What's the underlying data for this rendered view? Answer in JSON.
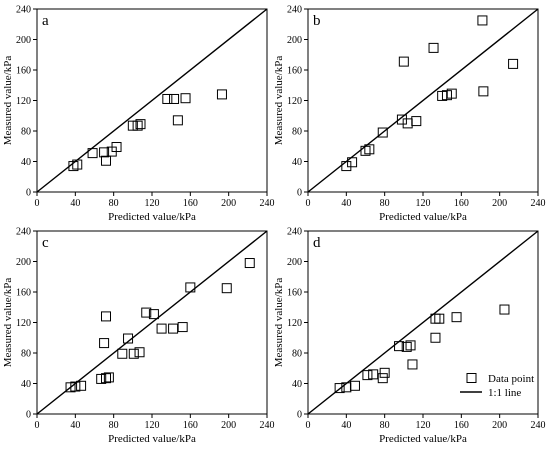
{
  "colors": {
    "background": "#ffffff",
    "axis": "#000000",
    "marker_stroke": "#000000",
    "marker_fill": "none",
    "identity_line": "#000000"
  },
  "chart_data": [
    {
      "type": "scatter",
      "panel_label": "a",
      "xlabel": "Predicted value/kPa",
      "ylabel": "Measured value/kPa",
      "xlim": [
        0,
        240
      ],
      "ylim": [
        0,
        240
      ],
      "xticks": [
        "0",
        "40",
        "80",
        "120",
        "160",
        "200",
        "240"
      ],
      "yticks": [
        "0",
        "40",
        "80",
        "120",
        "160",
        "200",
        "240"
      ],
      "grid": false,
      "marker": "open-square",
      "reference_line": "1:1",
      "legend": null,
      "points": [
        {
          "x": 38,
          "y": 34
        },
        {
          "x": 42,
          "y": 36
        },
        {
          "x": 58,
          "y": 51
        },
        {
          "x": 70,
          "y": 52
        },
        {
          "x": 72,
          "y": 41
        },
        {
          "x": 78,
          "y": 53
        },
        {
          "x": 83,
          "y": 59
        },
        {
          "x": 100,
          "y": 87
        },
        {
          "x": 105,
          "y": 87
        },
        {
          "x": 108,
          "y": 89
        },
        {
          "x": 136,
          "y": 122
        },
        {
          "x": 143,
          "y": 122
        },
        {
          "x": 147,
          "y": 94
        },
        {
          "x": 155,
          "y": 123
        },
        {
          "x": 193,
          "y": 128
        }
      ]
    },
    {
      "type": "scatter",
      "panel_label": "b",
      "xlabel": "Predicted value/kPa",
      "ylabel": "Measured value/kPa",
      "xlim": [
        0,
        240
      ],
      "ylim": [
        0,
        240
      ],
      "xticks": [
        "0",
        "40",
        "80",
        "120",
        "160",
        "200",
        "240"
      ],
      "yticks": [
        "0",
        "40",
        "80",
        "120",
        "160",
        "200",
        "240"
      ],
      "grid": false,
      "marker": "open-square",
      "reference_line": "1:1",
      "legend": null,
      "points": [
        {
          "x": 40,
          "y": 34
        },
        {
          "x": 46,
          "y": 39
        },
        {
          "x": 60,
          "y": 54
        },
        {
          "x": 64,
          "y": 56
        },
        {
          "x": 78,
          "y": 78
        },
        {
          "x": 98,
          "y": 95
        },
        {
          "x": 100,
          "y": 171
        },
        {
          "x": 104,
          "y": 90
        },
        {
          "x": 113,
          "y": 93
        },
        {
          "x": 131,
          "y": 189
        },
        {
          "x": 140,
          "y": 126
        },
        {
          "x": 145,
          "y": 127
        },
        {
          "x": 150,
          "y": 129
        },
        {
          "x": 182,
          "y": 225
        },
        {
          "x": 183,
          "y": 132
        },
        {
          "x": 214,
          "y": 168
        }
      ]
    },
    {
      "type": "scatter",
      "panel_label": "c",
      "xlabel": "Predicted value/kPa",
      "ylabel": "Measured value/kPa",
      "xlim": [
        0,
        240
      ],
      "ylim": [
        0,
        240
      ],
      "xticks": [
        "0",
        "40",
        "80",
        "120",
        "160",
        "200",
        "240"
      ],
      "yticks": [
        "0",
        "40",
        "80",
        "120",
        "160",
        "200",
        "240"
      ],
      "grid": false,
      "marker": "open-square",
      "reference_line": "1:1",
      "legend": null,
      "points": [
        {
          "x": 35,
          "y": 35
        },
        {
          "x": 40,
          "y": 36
        },
        {
          "x": 46,
          "y": 37
        },
        {
          "x": 67,
          "y": 46
        },
        {
          "x": 72,
          "y": 47
        },
        {
          "x": 75,
          "y": 48
        },
        {
          "x": 70,
          "y": 93
        },
        {
          "x": 72,
          "y": 128
        },
        {
          "x": 89,
          "y": 79
        },
        {
          "x": 95,
          "y": 99
        },
        {
          "x": 101,
          "y": 79
        },
        {
          "x": 107,
          "y": 81
        },
        {
          "x": 114,
          "y": 133
        },
        {
          "x": 122,
          "y": 131
        },
        {
          "x": 130,
          "y": 112
        },
        {
          "x": 142,
          "y": 112
        },
        {
          "x": 152,
          "y": 114
        },
        {
          "x": 160,
          "y": 166
        },
        {
          "x": 198,
          "y": 165
        },
        {
          "x": 222,
          "y": 198
        }
      ]
    },
    {
      "type": "scatter",
      "panel_label": "d",
      "xlabel": "Predicted value/kPa",
      "ylabel": "Measured value/kPa",
      "xlim": [
        0,
        240
      ],
      "ylim": [
        0,
        240
      ],
      "xticks": [
        "0",
        "40",
        "80",
        "120",
        "160",
        "200",
        "240"
      ],
      "yticks": [
        "0",
        "40",
        "80",
        "120",
        "160",
        "200",
        "240"
      ],
      "grid": false,
      "marker": "open-square",
      "reference_line": "1:1",
      "legend": {
        "position": "bottom-right",
        "entries": [
          {
            "label": "Data point",
            "symbol": "open-square"
          },
          {
            "label": "1:1 line",
            "symbol": "line"
          }
        ]
      },
      "points": [
        {
          "x": 33,
          "y": 34
        },
        {
          "x": 40,
          "y": 35
        },
        {
          "x": 49,
          "y": 37
        },
        {
          "x": 62,
          "y": 51
        },
        {
          "x": 68,
          "y": 52
        },
        {
          "x": 78,
          "y": 47
        },
        {
          "x": 80,
          "y": 54
        },
        {
          "x": 95,
          "y": 89
        },
        {
          "x": 103,
          "y": 88
        },
        {
          "x": 107,
          "y": 90
        },
        {
          "x": 109,
          "y": 65
        },
        {
          "x": 133,
          "y": 125
        },
        {
          "x": 133,
          "y": 100
        },
        {
          "x": 137,
          "y": 125
        },
        {
          "x": 155,
          "y": 127
        },
        {
          "x": 205,
          "y": 137
        }
      ]
    }
  ]
}
